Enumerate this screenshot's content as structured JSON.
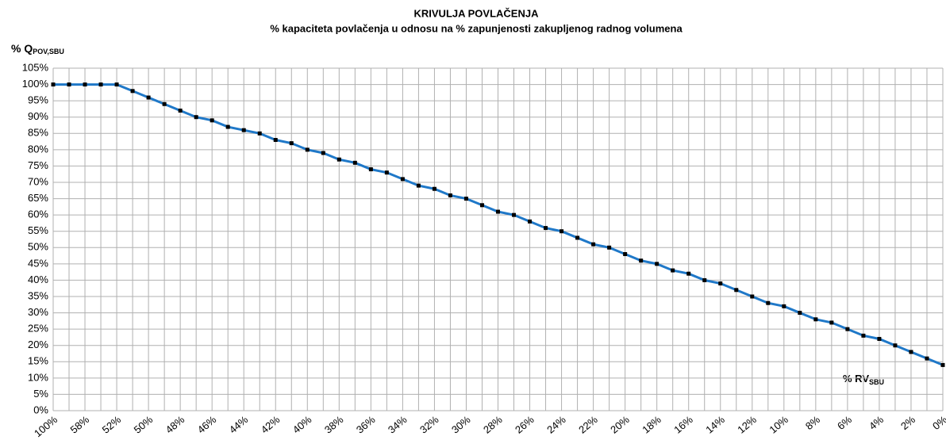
{
  "chart_data": {
    "type": "line",
    "title": "KRIVULJA POVLAČENJA",
    "subtitle": "% kapaciteta povlačenja u odnosu na %  zapunjenosti  zakupljenog radnog volumena",
    "y_label": "% Q",
    "y_label_sub": "POV,SBU",
    "x_label": "% RV",
    "x_label_sub": "SBU",
    "categories": [
      "100%",
      null,
      "58%",
      null,
      "52%",
      null,
      "50%",
      null,
      "48%",
      null,
      "46%",
      null,
      "44%",
      null,
      "42%",
      null,
      "40%",
      null,
      "38%",
      null,
      "36%",
      null,
      "34%",
      null,
      "32%",
      null,
      "30%",
      null,
      "28%",
      null,
      "26%",
      null,
      "24%",
      null,
      "22%",
      null,
      "20%",
      null,
      "18%",
      null,
      "16%",
      null,
      "14%",
      null,
      "12%",
      null,
      "10%",
      null,
      "8%",
      null,
      "6%",
      null,
      "4%",
      null,
      "2%",
      null,
      "0%"
    ],
    "series": [
      {
        "color": "#1f78c8",
        "marker_color": "#000000",
        "values": [
          100,
          100,
          100,
          100,
          100,
          98,
          96,
          94,
          92,
          90,
          89,
          87,
          86,
          85,
          83,
          82,
          80,
          79,
          77,
          76,
          74,
          73,
          71,
          69,
          68,
          66,
          65,
          63,
          61,
          60,
          58,
          56,
          55,
          53,
          51,
          50,
          48,
          46,
          45,
          43,
          42,
          40,
          39,
          37,
          35,
          33,
          32,
          30,
          28,
          27,
          25,
          23,
          22,
          20,
          18,
          16,
          14
        ]
      }
    ],
    "ylim": [
      0,
      105
    ],
    "yticks": [
      {
        "value": 0,
        "label": "0%"
      },
      {
        "value": 5,
        "label": "5%"
      },
      {
        "value": 10,
        "label": "10%"
      },
      {
        "value": 15,
        "label": "15%"
      },
      {
        "value": 20,
        "label": "20%"
      },
      {
        "value": 25,
        "label": "25%"
      },
      {
        "value": 30,
        "label": "30%"
      },
      {
        "value": 35,
        "label": "35%"
      },
      {
        "value": 40,
        "label": "40%"
      },
      {
        "value": 45,
        "label": "45%"
      },
      {
        "value": 50,
        "label": "50%"
      },
      {
        "value": 55,
        "label": "55%"
      },
      {
        "value": 60,
        "label": "60%"
      },
      {
        "value": 65,
        "label": "65%"
      },
      {
        "value": 70,
        "label": "70%"
      },
      {
        "value": 75,
        "label": "75%"
      },
      {
        "value": 80,
        "label": "80%"
      },
      {
        "value": 85,
        "label": "85%"
      },
      {
        "value": 90,
        "label": "90%"
      },
      {
        "value": 95,
        "label": "95%"
      },
      {
        "value": 100,
        "label": "100%"
      },
      {
        "value": 105,
        "label": "105%"
      }
    ],
    "grid": true
  }
}
